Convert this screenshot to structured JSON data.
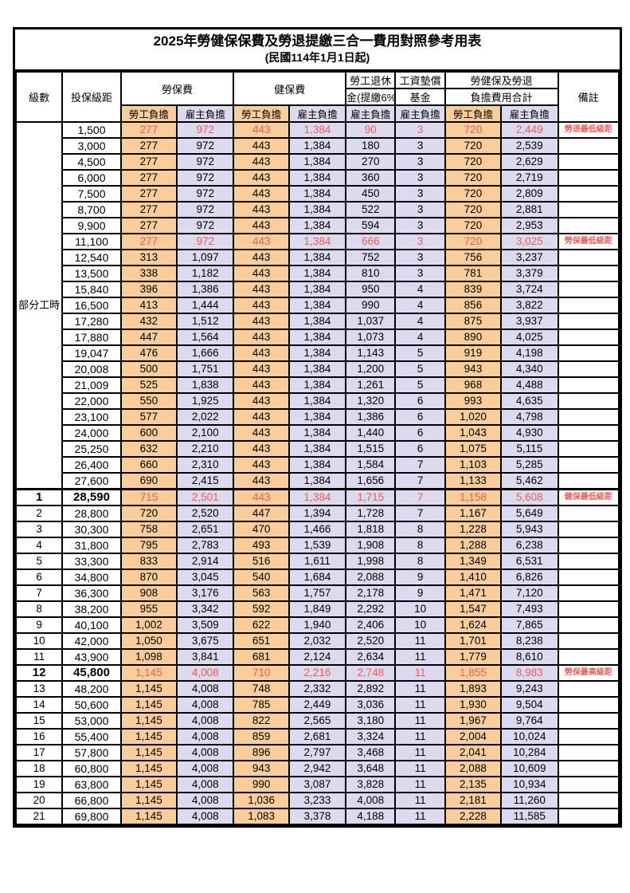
{
  "title": "2025年勞健保保費及勞退提繳三合一費用對照參考用表",
  "subtitle": "(民國114年1月1日起)",
  "colors": {
    "employee_share_bg": "#FACD9B",
    "employer_share_bg": "#DDDAF0",
    "highlight_red": "#F55B55",
    "border_black": "#000000"
  },
  "header": {
    "level": "級數",
    "bracket": "投保級距",
    "labor_insurance": "勞保費",
    "health_insurance": "健保費",
    "pension_line1": "勞工退休",
    "pension_line2": "金(提繳6%)",
    "wage_fund_line1": "工資墊償",
    "wage_fund_line2": "基金",
    "total_line1": "勞健保及勞退",
    "total_line2": "負擔費用合計",
    "remark": "備註",
    "employee_share": "勞工負擔",
    "employer_share": "雇主負擔"
  },
  "section_label": "部分工時",
  "rows": [
    {
      "level": "",
      "bracket": "1,500",
      "v": [
        "277",
        "972",
        "443",
        "1,384",
        "90",
        "3",
        "720",
        "2,449"
      ],
      "remark": "勞退最低級距",
      "red": true,
      "bold": false,
      "thick": false
    },
    {
      "level": "",
      "bracket": "3,000",
      "v": [
        "277",
        "972",
        "443",
        "1,384",
        "180",
        "3",
        "720",
        "2,539"
      ],
      "remark": "",
      "red": false,
      "bold": false,
      "thick": false
    },
    {
      "level": "",
      "bracket": "4,500",
      "v": [
        "277",
        "972",
        "443",
        "1,384",
        "270",
        "3",
        "720",
        "2,629"
      ],
      "remark": "",
      "red": false,
      "bold": false,
      "thick": false
    },
    {
      "level": "",
      "bracket": "6,000",
      "v": [
        "277",
        "972",
        "443",
        "1,384",
        "360",
        "3",
        "720",
        "2,719"
      ],
      "remark": "",
      "red": false,
      "bold": false,
      "thick": false
    },
    {
      "level": "",
      "bracket": "7,500",
      "v": [
        "277",
        "972",
        "443",
        "1,384",
        "450",
        "3",
        "720",
        "2,809"
      ],
      "remark": "",
      "red": false,
      "bold": false,
      "thick": false
    },
    {
      "level": "",
      "bracket": "8,700",
      "v": [
        "277",
        "972",
        "443",
        "1,384",
        "522",
        "3",
        "720",
        "2,881"
      ],
      "remark": "",
      "red": false,
      "bold": false,
      "thick": false
    },
    {
      "level": "",
      "bracket": "9,900",
      "v": [
        "277",
        "972",
        "443",
        "1,384",
        "594",
        "3",
        "720",
        "2,953"
      ],
      "remark": "",
      "red": false,
      "bold": false,
      "thick": false
    },
    {
      "level": "",
      "bracket": "11,100",
      "v": [
        "277",
        "972",
        "443",
        "1,384",
        "666",
        "3",
        "720",
        "3,025"
      ],
      "remark": "勞保最低級距",
      "red": true,
      "bold": false,
      "thick": false
    },
    {
      "level": "",
      "bracket": "12,540",
      "v": [
        "313",
        "1,097",
        "443",
        "1,384",
        "752",
        "3",
        "756",
        "3,237"
      ],
      "remark": "",
      "red": false,
      "bold": false,
      "thick": false
    },
    {
      "level": "",
      "bracket": "13,500",
      "v": [
        "338",
        "1,182",
        "443",
        "1,384",
        "810",
        "3",
        "781",
        "3,379"
      ],
      "remark": "",
      "red": false,
      "bold": false,
      "thick": false
    },
    {
      "level": "",
      "bracket": "15,840",
      "v": [
        "396",
        "1,386",
        "443",
        "1,384",
        "950",
        "4",
        "839",
        "3,724"
      ],
      "remark": "",
      "red": false,
      "bold": false,
      "thick": false
    },
    {
      "level": "",
      "bracket": "16,500",
      "v": [
        "413",
        "1,444",
        "443",
        "1,384",
        "990",
        "4",
        "856",
        "3,822"
      ],
      "remark": "",
      "red": false,
      "bold": false,
      "thick": false
    },
    {
      "level": "",
      "bracket": "17,280",
      "v": [
        "432",
        "1,512",
        "443",
        "1,384",
        "1,037",
        "4",
        "875",
        "3,937"
      ],
      "remark": "",
      "red": false,
      "bold": false,
      "thick": false
    },
    {
      "level": "",
      "bracket": "17,880",
      "v": [
        "447",
        "1,564",
        "443",
        "1,384",
        "1,073",
        "4",
        "890",
        "4,025"
      ],
      "remark": "",
      "red": false,
      "bold": false,
      "thick": false
    },
    {
      "level": "",
      "bracket": "19,047",
      "v": [
        "476",
        "1,666",
        "443",
        "1,384",
        "1,143",
        "5",
        "919",
        "4,198"
      ],
      "remark": "",
      "red": false,
      "bold": false,
      "thick": false
    },
    {
      "level": "",
      "bracket": "20,008",
      "v": [
        "500",
        "1,751",
        "443",
        "1,384",
        "1,200",
        "5",
        "943",
        "4,340"
      ],
      "remark": "",
      "red": false,
      "bold": false,
      "thick": false
    },
    {
      "level": "",
      "bracket": "21,009",
      "v": [
        "525",
        "1,838",
        "443",
        "1,384",
        "1,261",
        "5",
        "968",
        "4,488"
      ],
      "remark": "",
      "red": false,
      "bold": false,
      "thick": false
    },
    {
      "level": "",
      "bracket": "22,000",
      "v": [
        "550",
        "1,925",
        "443",
        "1,384",
        "1,320",
        "6",
        "993",
        "4,635"
      ],
      "remark": "",
      "red": false,
      "bold": false,
      "thick": false
    },
    {
      "level": "",
      "bracket": "23,100",
      "v": [
        "577",
        "2,022",
        "443",
        "1,384",
        "1,386",
        "6",
        "1,020",
        "4,798"
      ],
      "remark": "",
      "red": false,
      "bold": false,
      "thick": false
    },
    {
      "level": "",
      "bracket": "24,000",
      "v": [
        "600",
        "2,100",
        "443",
        "1,384",
        "1,440",
        "6",
        "1,043",
        "4,930"
      ],
      "remark": "",
      "red": false,
      "bold": false,
      "thick": false
    },
    {
      "level": "",
      "bracket": "25,250",
      "v": [
        "632",
        "2,210",
        "443",
        "1,384",
        "1,515",
        "6",
        "1,075",
        "5,115"
      ],
      "remark": "",
      "red": false,
      "bold": false,
      "thick": false
    },
    {
      "level": "",
      "bracket": "26,400",
      "v": [
        "660",
        "2,310",
        "443",
        "1,384",
        "1,584",
        "7",
        "1,103",
        "5,285"
      ],
      "remark": "",
      "red": false,
      "bold": false,
      "thick": false
    },
    {
      "level": "",
      "bracket": "27,600",
      "v": [
        "690",
        "2,415",
        "443",
        "1,384",
        "1,656",
        "7",
        "1,133",
        "5,462"
      ],
      "remark": "",
      "red": false,
      "bold": false,
      "thick": false
    },
    {
      "level": "1",
      "bracket": "28,590",
      "v": [
        "715",
        "2,501",
        "443",
        "1,384",
        "1,715",
        "7",
        "1,158",
        "5,608"
      ],
      "remark": "健保最低級距",
      "red": true,
      "bold": true,
      "thick": true
    },
    {
      "level": "2",
      "bracket": "28,800",
      "v": [
        "720",
        "2,520",
        "447",
        "1,394",
        "1,728",
        "7",
        "1,167",
        "5,649"
      ],
      "remark": "",
      "red": false,
      "bold": false,
      "thick": false
    },
    {
      "level": "3",
      "bracket": "30,300",
      "v": [
        "758",
        "2,651",
        "470",
        "1,466",
        "1,818",
        "8",
        "1,228",
        "5,943"
      ],
      "remark": "",
      "red": false,
      "bold": false,
      "thick": false
    },
    {
      "level": "4",
      "bracket": "31,800",
      "v": [
        "795",
        "2,783",
        "493",
        "1,539",
        "1,908",
        "8",
        "1,288",
        "6,238"
      ],
      "remark": "",
      "red": false,
      "bold": false,
      "thick": false
    },
    {
      "level": "5",
      "bracket": "33,300",
      "v": [
        "833",
        "2,914",
        "516",
        "1,611",
        "1,998",
        "8",
        "1,349",
        "6,531"
      ],
      "remark": "",
      "red": false,
      "bold": false,
      "thick": false
    },
    {
      "level": "6",
      "bracket": "34,800",
      "v": [
        "870",
        "3,045",
        "540",
        "1,684",
        "2,088",
        "9",
        "1,410",
        "6,826"
      ],
      "remark": "",
      "red": false,
      "bold": false,
      "thick": false
    },
    {
      "level": "7",
      "bracket": "36,300",
      "v": [
        "908",
        "3,176",
        "563",
        "1,757",
        "2,178",
        "9",
        "1,471",
        "7,120"
      ],
      "remark": "",
      "red": false,
      "bold": false,
      "thick": false
    },
    {
      "level": "8",
      "bracket": "38,200",
      "v": [
        "955",
        "3,342",
        "592",
        "1,849",
        "2,292",
        "10",
        "1,547",
        "7,493"
      ],
      "remark": "",
      "red": false,
      "bold": false,
      "thick": false
    },
    {
      "level": "9",
      "bracket": "40,100",
      "v": [
        "1,002",
        "3,509",
        "622",
        "1,940",
        "2,406",
        "10",
        "1,624",
        "7,865"
      ],
      "remark": "",
      "red": false,
      "bold": false,
      "thick": false
    },
    {
      "level": "10",
      "bracket": "42,000",
      "v": [
        "1,050",
        "3,675",
        "651",
        "2,032",
        "2,520",
        "11",
        "1,701",
        "8,238"
      ],
      "remark": "",
      "red": false,
      "bold": false,
      "thick": false
    },
    {
      "level": "11",
      "bracket": "43,900",
      "v": [
        "1,098",
        "3,841",
        "681",
        "2,124",
        "2,634",
        "11",
        "1,779",
        "8,610"
      ],
      "remark": "",
      "red": false,
      "bold": false,
      "thick": false
    },
    {
      "level": "12",
      "bracket": "45,800",
      "v": [
        "1,145",
        "4,008",
        "710",
        "2,216",
        "2,748",
        "11",
        "1,855",
        "8,983"
      ],
      "remark": "勞保最高級距",
      "red": true,
      "bold": true,
      "thick": false
    },
    {
      "level": "13",
      "bracket": "48,200",
      "v": [
        "1,145",
        "4,008",
        "748",
        "2,332",
        "2,892",
        "11",
        "1,893",
        "9,243"
      ],
      "remark": "",
      "red": false,
      "bold": false,
      "thick": false
    },
    {
      "level": "14",
      "bracket": "50,600",
      "v": [
        "1,145",
        "4,008",
        "785",
        "2,449",
        "3,036",
        "11",
        "1,930",
        "9,504"
      ],
      "remark": "",
      "red": false,
      "bold": false,
      "thick": false
    },
    {
      "level": "15",
      "bracket": "53,000",
      "v": [
        "1,145",
        "4,008",
        "822",
        "2,565",
        "3,180",
        "11",
        "1,967",
        "9,764"
      ],
      "remark": "",
      "red": false,
      "bold": false,
      "thick": false
    },
    {
      "level": "16",
      "bracket": "55,400",
      "v": [
        "1,145",
        "4,008",
        "859",
        "2,681",
        "3,324",
        "11",
        "2,004",
        "10,024"
      ],
      "remark": "",
      "red": false,
      "bold": false,
      "thick": false
    },
    {
      "level": "17",
      "bracket": "57,800",
      "v": [
        "1,145",
        "4,008",
        "896",
        "2,797",
        "3,468",
        "11",
        "2,041",
        "10,284"
      ],
      "remark": "",
      "red": false,
      "bold": false,
      "thick": false
    },
    {
      "level": "18",
      "bracket": "60,800",
      "v": [
        "1,145",
        "4,008",
        "943",
        "2,942",
        "3,648",
        "11",
        "2,088",
        "10,609"
      ],
      "remark": "",
      "red": false,
      "bold": false,
      "thick": false
    },
    {
      "level": "19",
      "bracket": "63,800",
      "v": [
        "1,145",
        "4,008",
        "990",
        "3,087",
        "3,828",
        "11",
        "2,135",
        "10,934"
      ],
      "remark": "",
      "red": false,
      "bold": false,
      "thick": false
    },
    {
      "level": "20",
      "bracket": "66,800",
      "v": [
        "1,145",
        "4,008",
        "1,036",
        "3,233",
        "4,008",
        "11",
        "2,181",
        "11,260"
      ],
      "remark": "",
      "red": false,
      "bold": false,
      "thick": false
    },
    {
      "level": "21",
      "bracket": "69,800",
      "v": [
        "1,145",
        "4,008",
        "1,083",
        "3,378",
        "4,188",
        "11",
        "2,228",
        "11,585"
      ],
      "remark": "",
      "red": false,
      "bold": false,
      "thick": false
    }
  ]
}
